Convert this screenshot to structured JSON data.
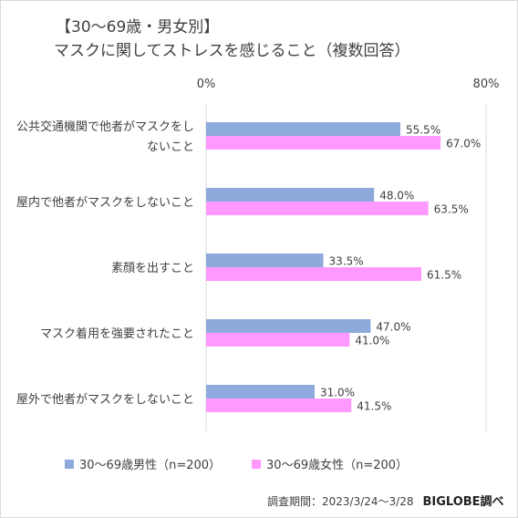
{
  "chart_data": {
    "type": "bar",
    "orientation": "horizontal",
    "title_lines": [
      "【30～69歳・男女別】",
      "マスクに関してストレスを感じること（複数回答）"
    ],
    "categories": [
      [
        "公共交通機関で他者がマスクをし",
        "ないこと"
      ],
      [
        "屋内で他者がマスクをしないこと"
      ],
      [
        "素顔を出すこと"
      ],
      [
        "マスク着用を強要されたこと"
      ],
      [
        "屋外で他者がマスクをしないこと"
      ]
    ],
    "series": [
      {
        "name": "30～69歳男性（n=200）",
        "color": "#8ea9db",
        "values": [
          55.5,
          48.0,
          33.5,
          47.0,
          31.0
        ],
        "labels": [
          "55.5%",
          "48.0%",
          "33.5%",
          "47.0%",
          "31.0%"
        ]
      },
      {
        "name": "30～69歳女性（n=200）",
        "color": "#ff99ff",
        "values": [
          67.0,
          63.5,
          61.5,
          41.0,
          41.5
        ],
        "labels": [
          "67.0%",
          "63.5%",
          "61.5%",
          "41.0%",
          "41.5%"
        ]
      }
    ],
    "xlim": [
      0,
      80
    ],
    "axis_labels": [
      "0%",
      "80%"
    ],
    "grid": false,
    "legend_position": "bottom"
  },
  "footer": {
    "period": "調査期間：2023/3/24～3/28",
    "source": "BIGLOBE調べ"
  }
}
